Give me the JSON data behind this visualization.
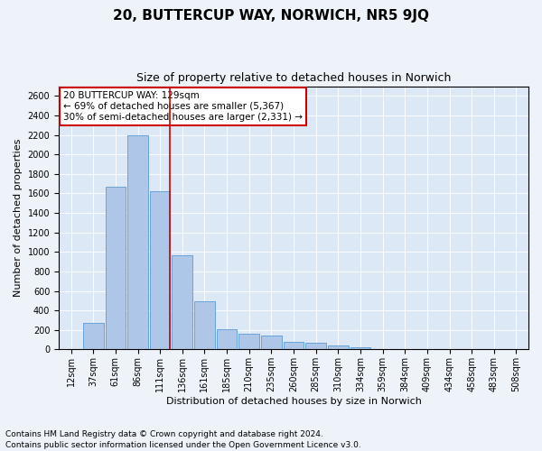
{
  "title1": "20, BUTTERCUP WAY, NORWICH, NR5 9JQ",
  "title2": "Size of property relative to detached houses in Norwich",
  "xlabel": "Distribution of detached houses by size in Norwich",
  "ylabel": "Number of detached properties",
  "categories": [
    "12sqm",
    "37sqm",
    "61sqm",
    "86sqm",
    "111sqm",
    "136sqm",
    "161sqm",
    "185sqm",
    "210sqm",
    "235sqm",
    "260sqm",
    "285sqm",
    "310sqm",
    "334sqm",
    "359sqm",
    "384sqm",
    "409sqm",
    "434sqm",
    "458sqm",
    "483sqm",
    "508sqm"
  ],
  "values": [
    5,
    270,
    1670,
    2200,
    1620,
    970,
    490,
    210,
    160,
    145,
    75,
    65,
    45,
    20,
    8,
    8,
    4,
    2,
    8,
    2,
    2
  ],
  "bar_color": "#aec6e8",
  "bar_edge_color": "#5b9bd5",
  "vline_color": "#cc0000",
  "annotation_text": "20 BUTTERCUP WAY: 129sqm\n← 69% of detached houses are smaller (5,367)\n30% of semi-detached houses are larger (2,331) →",
  "annotation_box_color": "#ffffff",
  "annotation_box_edge": "#cc0000",
  "ylim": [
    0,
    2700
  ],
  "yticks": [
    0,
    200,
    400,
    600,
    800,
    1000,
    1200,
    1400,
    1600,
    1800,
    2000,
    2200,
    2400,
    2600
  ],
  "footer1": "Contains HM Land Registry data © Crown copyright and database right 2024.",
  "footer2": "Contains public sector information licensed under the Open Government Licence v3.0.",
  "bg_color": "#eef3fa",
  "plot_bg_color": "#dce8f5",
  "title1_fontsize": 11,
  "title2_fontsize": 9,
  "xlabel_fontsize": 8,
  "ylabel_fontsize": 8,
  "tick_fontsize": 7,
  "annotation_fontsize": 7.5,
  "footer_fontsize": 6.5
}
